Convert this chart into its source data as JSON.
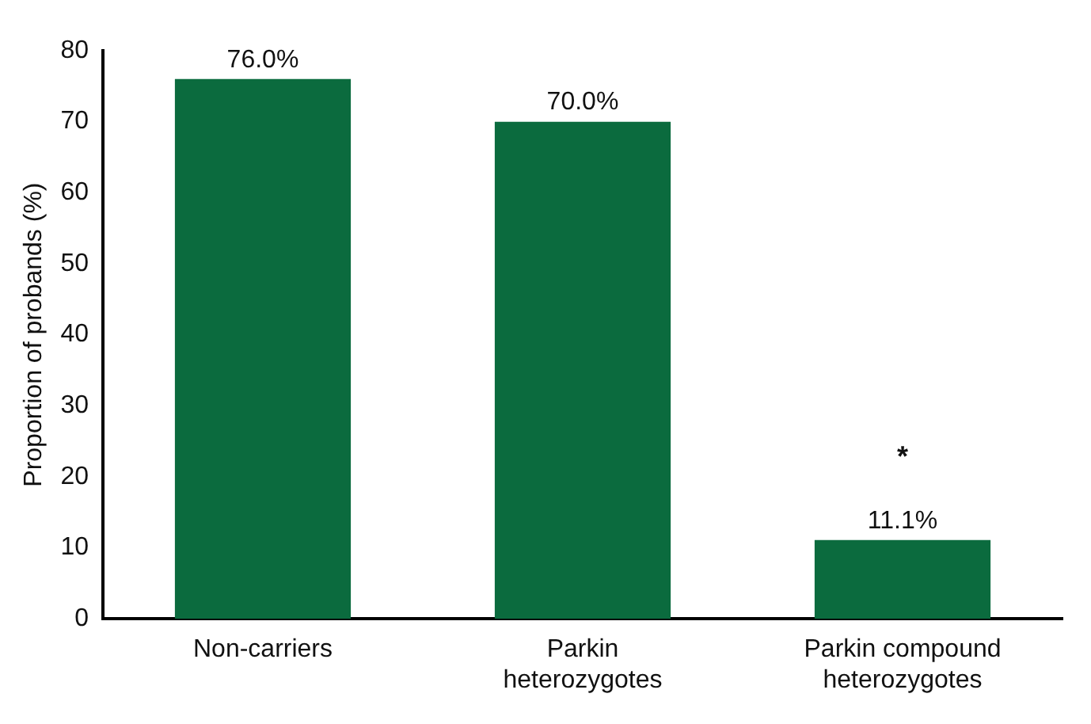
{
  "chart_data": {
    "type": "bar",
    "ylabel": "Proportion of probands (%)",
    "categories": [
      "Non-carriers",
      "Parkin heterozygotes",
      "Parkin compound heterozygotes"
    ],
    "values": [
      76.0,
      70.0,
      11.1
    ],
    "value_labels": [
      "76.0%",
      "70.0%",
      "11.1%"
    ],
    "color": "#0b6b3e",
    "ylim": [
      0,
      80
    ],
    "yticks": [
      0,
      10,
      20,
      30,
      40,
      50,
      60,
      70,
      80
    ],
    "grid": false,
    "annotations": [
      "*"
    ]
  }
}
